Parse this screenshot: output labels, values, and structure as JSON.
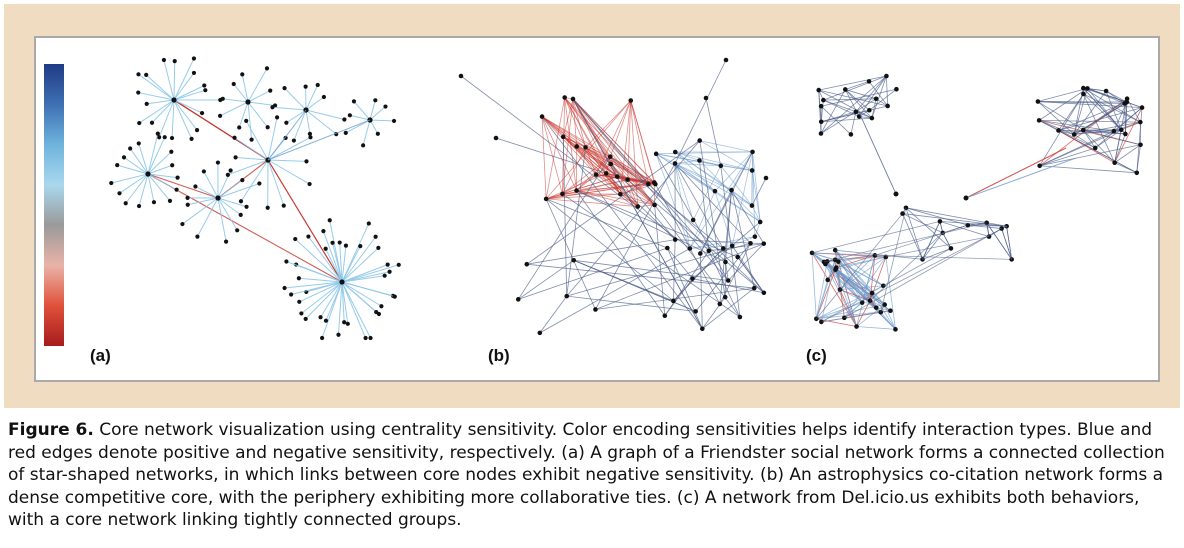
{
  "figure": {
    "panels": [
      {
        "label": "(a)"
      },
      {
        "label": "(b)"
      },
      {
        "label": "(c)"
      }
    ],
    "colorbar": {
      "stops": [
        "#1f3b85",
        "#3f6fb4",
        "#6fb3dc",
        "#a9d8ee",
        "#9a9a9a",
        "#e9b3a8",
        "#e0513a",
        "#a61c1c"
      ],
      "meaning_top": "positive sensitivity (blue)",
      "meaning_bottom": "negative sensitivity (red)"
    },
    "colors": {
      "frame": "#f0dcc0",
      "panel_border": "#a9a9a9",
      "edge_blue": "#6f9ccd",
      "edge_dark": "#4a5d86",
      "edge_red": "#c8332a",
      "edge_light_blue": "#8cc6e8",
      "node": "#111111"
    }
  },
  "caption": {
    "label": "Figure 6.",
    "text": " Core network visualization using centrality sensitivity. Color encoding sensitivities helps identify interaction types. Blue and red edges denote positive and negative sensitivity, respectively. (a) A graph of a Friendster social network forms a connected collection of star-shaped networks, in which links between core nodes exhibit negative sensitivity. (b) An astrophysics co-citation network forms a dense competitive core, with the periphery exhibiting more collaborative ties. (c) A network from Del.icio.us exhibits both behaviors, with a core network linking tightly connected groups."
  }
}
